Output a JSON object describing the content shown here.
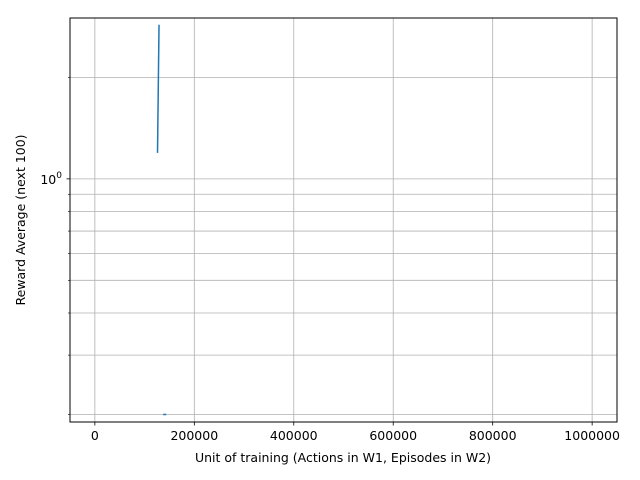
{
  "chart_data": {
    "type": "line",
    "title": "",
    "xlabel": "Unit of training (Actions in W1, Episodes in W2)",
    "ylabel": "Reward Average (next 100)",
    "xscale": "linear",
    "yscale": "log",
    "xlim": [
      -50000,
      1050000
    ],
    "ylim": [
      0.19,
      3.0
    ],
    "grid": true,
    "legend": "none",
    "x_ticks": [
      0,
      200000,
      400000,
      600000,
      800000,
      1000000
    ],
    "x_tick_labels": [
      "0",
      "200000",
      "400000",
      "600000",
      "800000",
      "1000000"
    ],
    "y_major_ticks": [
      1
    ],
    "y_major_tick_labels": [
      "10^0"
    ],
    "y_minor_ticks": [
      0.2,
      0.3,
      0.4,
      0.5,
      0.6,
      0.7,
      0.8,
      0.9,
      2
    ],
    "series": [
      {
        "color": "#1f77b4",
        "segments": [
          {
            "x": [
              126000,
              129000
            ],
            "y": [
              1.2,
              2.85
            ]
          },
          {
            "x": [
              139000,
              142000
            ],
            "y": [
              0.2,
              0.2
            ]
          }
        ]
      }
    ]
  }
}
